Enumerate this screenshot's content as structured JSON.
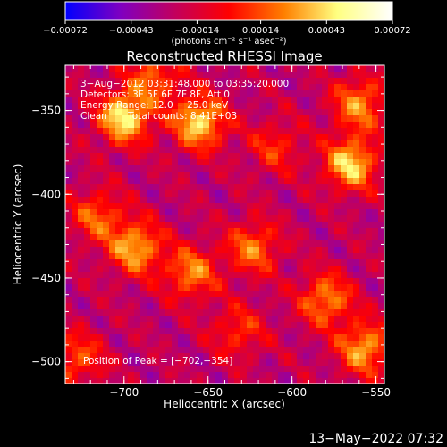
{
  "chart_data": {
    "type": "heatmap",
    "title": "Reconstructed RHESSI Image",
    "xlabel": "Heliocentric X (arcsec)",
    "ylabel": "Heliocentric Y (arcsec)",
    "xlim": [
      -735,
      -545
    ],
    "ylim": [
      -513,
      -323
    ],
    "x_ticks": [
      -700,
      -650,
      -600,
      -550
    ],
    "x_tick_labels": [
      "−700",
      "−650",
      "−600",
      "−550"
    ],
    "y_ticks": [
      -350,
      -400,
      -450,
      -500
    ],
    "y_tick_labels": [
      "−350",
      "−400",
      "−450",
      "−500"
    ],
    "colorbar": {
      "range": [
        -0.00072,
        0.00072
      ],
      "tick_values": [
        -0.00072,
        -0.00043,
        -0.00014,
        0.00014,
        0.00043,
        0.00072
      ],
      "tick_labels": [
        "−0.00072",
        "−0.00043",
        "−0.00014",
        "0.00014",
        "0.00043",
        "0.00072"
      ],
      "unit_label": "(photons cm⁻² s⁻¹ asec⁻²)",
      "colors": [
        "#0000ff",
        "#8000c0",
        "#c00060",
        "#ff0000",
        "#ff8000",
        "#ffff80",
        "#ffffff"
      ]
    },
    "annotations": [
      "3−Aug−2012 03:31:48.000 to 03:35:20.000",
      "Detectors: 3F 5F 6F 7F 8F, Att 0",
      "Energy Range: 12.0 − 25.0 keV",
      "Clean       Total counts: 8.41E+03"
    ],
    "peak_label": "Position of Peak = [−702,−354]",
    "peak_position": [
      -702,
      -354
    ],
    "peak_value": 0.00072,
    "sources": [
      {
        "x": -700,
        "y": -354,
        "peak": 0.00072
      },
      {
        "x": -655,
        "y": -357,
        "peak": 0.00068
      },
      {
        "x": -565,
        "y": -382,
        "peak": 0.00066
      },
      {
        "x": -560,
        "y": -346,
        "peak": 0.0005
      },
      {
        "x": -693,
        "y": -432,
        "peak": 0.00058
      },
      {
        "x": -660,
        "y": -447,
        "peak": 0.00048
      },
      {
        "x": -623,
        "y": -432,
        "peak": 0.00045
      },
      {
        "x": -580,
        "y": -463,
        "peak": 0.0005
      },
      {
        "x": -557,
        "y": -492,
        "peak": 0.00056
      },
      {
        "x": -716,
        "y": -413,
        "peak": 0.0004
      },
      {
        "x": -610,
        "y": -372,
        "peak": 0.0003
      },
      {
        "x": -728,
        "y": -498,
        "peak": 0.00038
      },
      {
        "x": -682,
        "y": -330,
        "peak": 0.0004
      },
      {
        "x": -632,
        "y": -482,
        "peak": 0.00032
      }
    ]
  },
  "footer": {
    "timestamp": "13−May−2022 07:32"
  }
}
